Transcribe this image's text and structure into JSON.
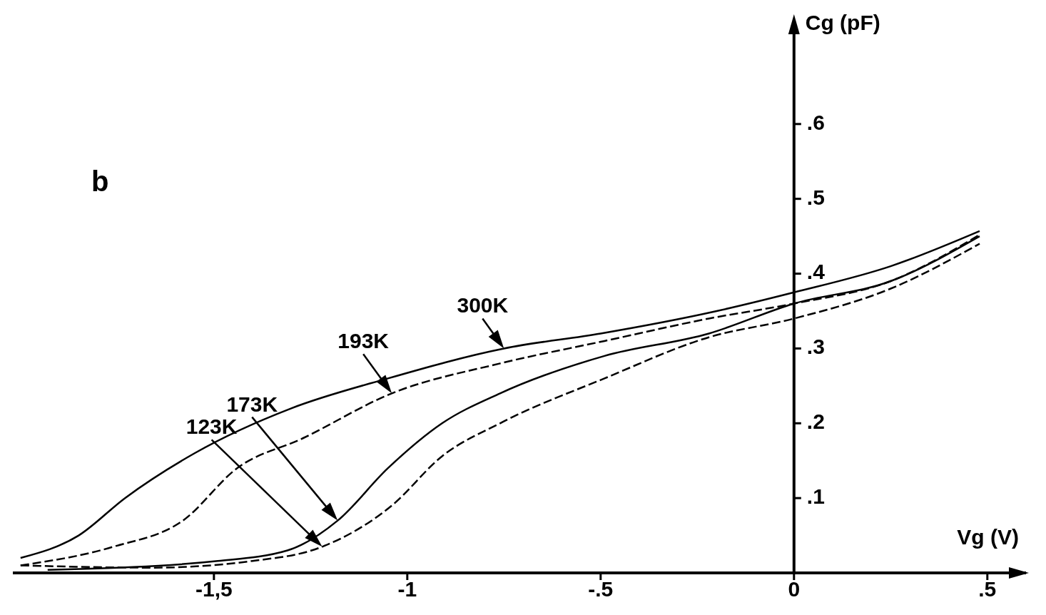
{
  "chart_data": {
    "type": "line",
    "xlabel": "Vg (V)",
    "ylabel": "Cg (pF)",
    "xlim": [
      -2.02,
      0.6
    ],
    "ylim": [
      0,
      0.72
    ],
    "xticks": [
      {
        "value": -1.5,
        "label": "-1,5"
      },
      -1,
      {
        "value": -0.5,
        "label": "-.5"
      },
      0,
      {
        "value": 0.5,
        "label": ".5"
      }
    ],
    "yticks": [
      {
        "value": 0.1,
        "label": ".1"
      },
      {
        "value": 0.2,
        "label": ".2"
      },
      {
        "value": 0.3,
        "label": ".3"
      },
      {
        "value": 0.4,
        "label": ".4"
      },
      {
        "value": 0.5,
        "label": ".5"
      },
      {
        "value": 0.6,
        "label": ".6"
      }
    ],
    "marker": "none",
    "series": [
      {
        "color": "#000000",
        "line_style": "solid",
        "x": [
          -2.0,
          -1.85,
          -1.73,
          -1.55,
          -1.3,
          -1.05,
          -0.75,
          -0.5,
          -0.2,
          0,
          0.25,
          0.48
        ],
        "values": [
          0.02,
          0.05,
          0.1,
          0.16,
          0.22,
          0.26,
          0.3,
          0.32,
          0.35,
          0.375,
          0.41,
          0.457
        ]
      },
      {
        "color": "#000000",
        "line_style": "dashed",
        "x": [
          -2.0,
          -1.76,
          -1.58,
          -1.44,
          -1.27,
          -1.04,
          -0.76,
          -0.49,
          -0.22,
          0,
          0.25,
          0.48
        ],
        "values": [
          0.01,
          0.035,
          0.07,
          0.14,
          0.18,
          0.24,
          0.28,
          0.31,
          0.34,
          0.36,
          0.39,
          0.452
        ]
      },
      {
        "color": "#000000",
        "line_style": "solid",
        "x": [
          -1.93,
          -1.49,
          -1.31,
          -1.18,
          -1.05,
          -0.91,
          -0.76,
          -0.49,
          -0.22,
          0,
          0.25,
          0.48
        ],
        "values": [
          0.004,
          0.016,
          0.03,
          0.07,
          0.14,
          0.2,
          0.24,
          0.29,
          0.32,
          0.36,
          0.39,
          0.45
        ]
      },
      {
        "color": "#000000",
        "line_style": "dashed",
        "x": [
          -2.0,
          -1.66,
          -1.4,
          -1.22,
          -1.04,
          -0.91,
          -0.76,
          -0.49,
          -0.22,
          0,
          0.25,
          0.48
        ],
        "values": [
          0.01,
          0.007,
          0.016,
          0.035,
          0.09,
          0.156,
          0.2,
          0.26,
          0.315,
          0.34,
          0.38,
          0.44
        ]
      }
    ],
    "annotations": [
      {
        "text": "300K",
        "x": -0.75,
        "y": 0.3
      },
      {
        "text": "193K",
        "x": -1.04,
        "y": 0.24
      },
      "173K",
      "123K",
      "b"
    ]
  }
}
